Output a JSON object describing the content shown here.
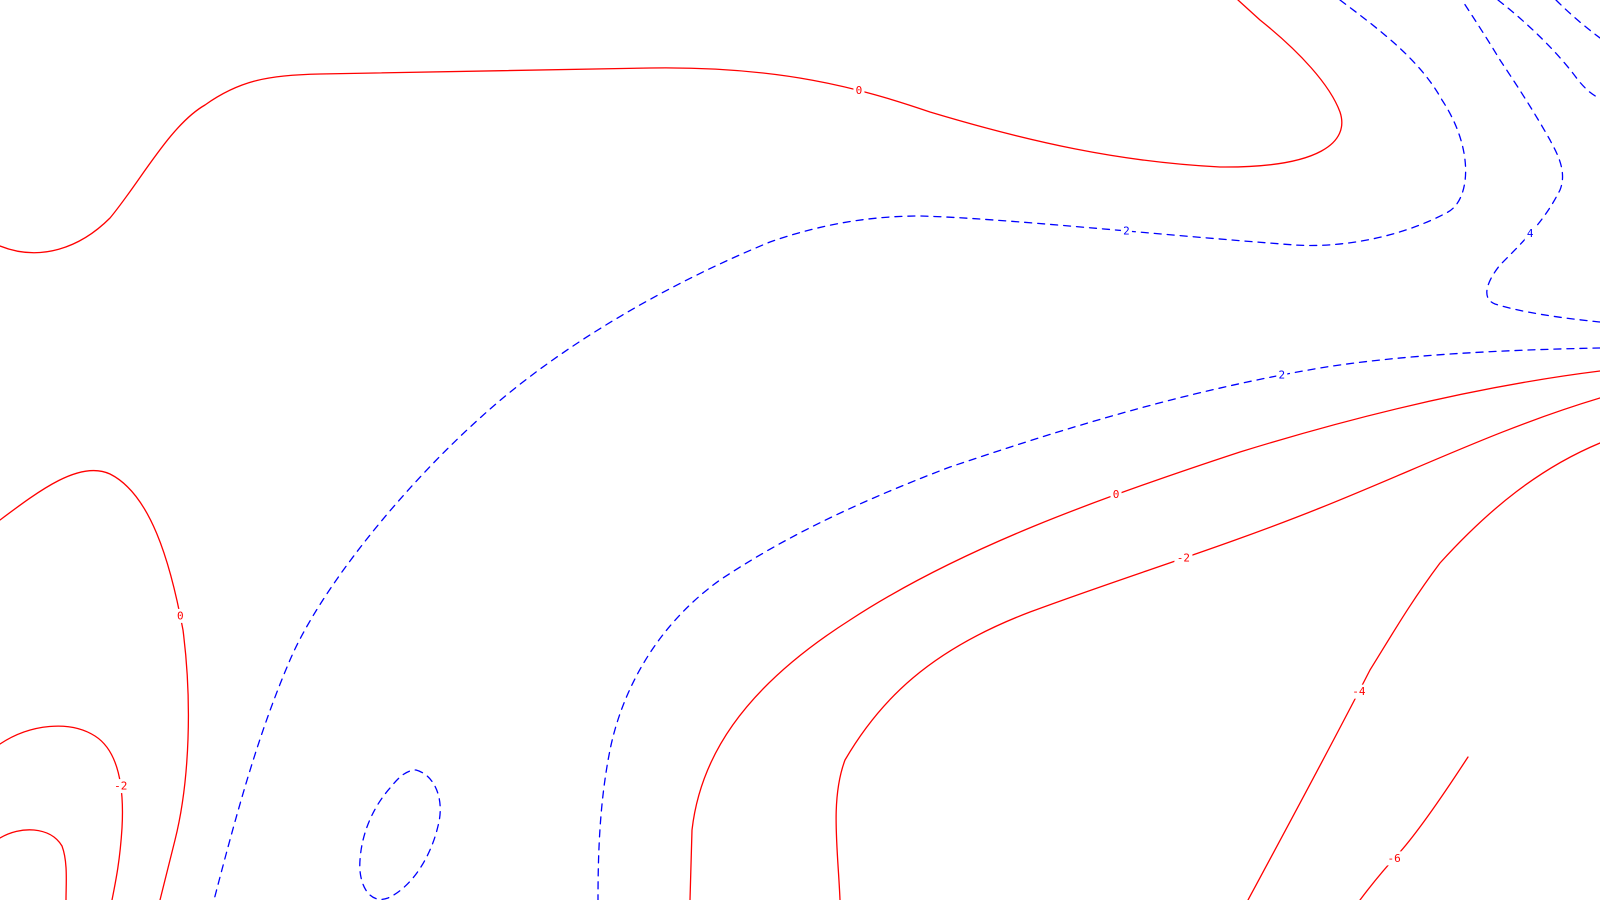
{
  "chart_data": {
    "type": "contour",
    "title": "",
    "xlabel": "",
    "ylabel": "",
    "colors": {
      "positive": "#0000ff",
      "non_positive": "#ff0000",
      "background": "#ffffff"
    },
    "line_styles": {
      "positive": "dashed",
      "non_positive": "solid"
    },
    "contours": [
      {
        "level": 0,
        "label": "0"
      },
      {
        "level": 0,
        "label": "0"
      },
      {
        "level": 0,
        "label": "0"
      },
      {
        "level": -2,
        "label": "-2"
      },
      {
        "level": -2,
        "label": ""
      },
      {
        "level": -2,
        "label": "-2"
      },
      {
        "level": -4,
        "label": "-4"
      },
      {
        "level": -6,
        "label": "-6"
      },
      {
        "level": 2,
        "label": "2"
      },
      {
        "level": 2,
        "label": "2"
      },
      {
        "level": 2,
        "label": ""
      },
      {
        "level": 4,
        "label": "4"
      },
      {
        "level": 4,
        "label": ""
      },
      {
        "level": 2,
        "label": ""
      }
    ]
  }
}
